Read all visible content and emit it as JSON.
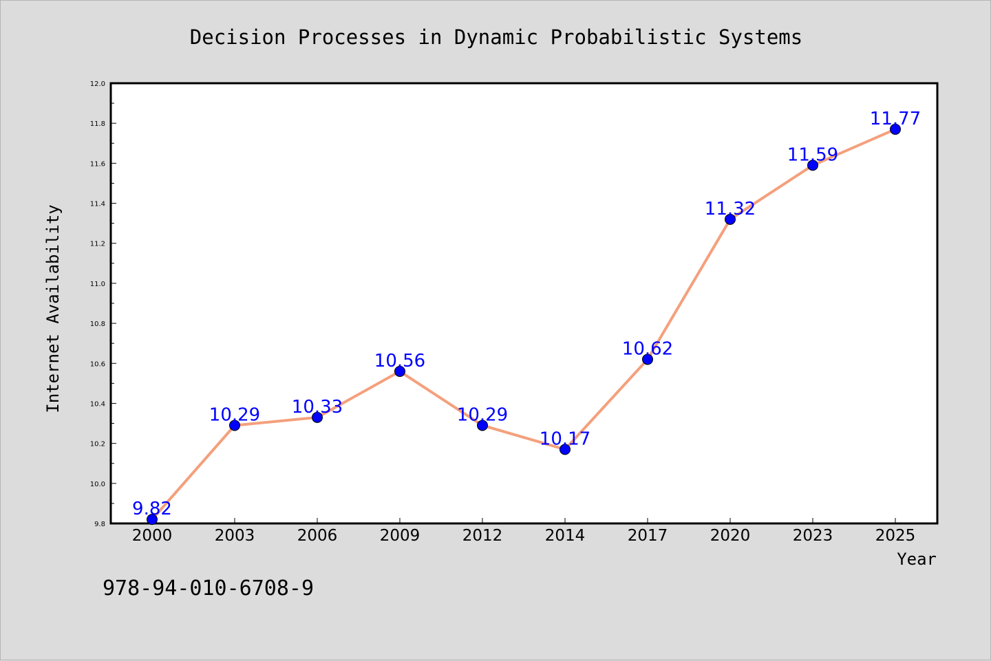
{
  "chart_data": {
    "type": "line",
    "title": "Decision Processes in Dynamic Probabilistic Systems",
    "xlabel": "Year",
    "ylabel": "Internet Availability",
    "categories": [
      "2000",
      "2003",
      "2006",
      "2009",
      "2012",
      "2014",
      "2017",
      "2020",
      "2023",
      "2025"
    ],
    "series": [
      {
        "values": [
          9.82,
          10.29,
          10.33,
          10.56,
          10.29,
          10.17,
          10.62,
          11.32,
          11.59,
          11.77
        ],
        "data_labels": [
          "9.82",
          "10.29",
          "10.33",
          "10.56",
          "10.29",
          "10.17",
          "10.62",
          "11.32",
          "11.59",
          "11.77"
        ],
        "line_color": "#f4a07c",
        "marker_color": "#0000ff"
      }
    ],
    "ylim": [
      9.8,
      12.0
    ],
    "yticks": [
      "9.8",
      "10.0",
      "10.2",
      "10.4",
      "10.6",
      "10.8",
      "11.0",
      "11.2",
      "11.4",
      "11.6",
      "11.8",
      "12.0"
    ],
    "grid": false,
    "legend": "none",
    "data_label_color": "#0000ff",
    "plot_background": "#ffffff",
    "figure_background": "#dcdcdc"
  },
  "footer": {
    "isbn": "978-94-010-6708-9"
  }
}
